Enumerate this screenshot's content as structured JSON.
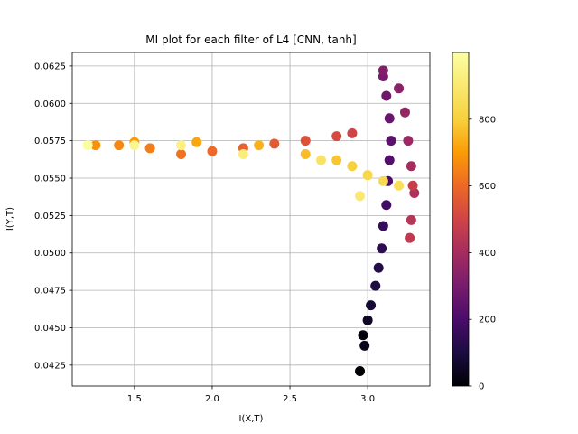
{
  "chart_data": {
    "type": "scatter",
    "title": "MI plot for each filter of L4 [CNN, tanh]",
    "xlabel": "I(X,T)",
    "ylabel": "I(Y,T)",
    "xlim": [
      1.1,
      3.4
    ],
    "ylim": [
      0.0411,
      0.0634
    ],
    "x_ticks": [
      1.5,
      2.0,
      2.5,
      3.0
    ],
    "x_tick_labels": [
      "1.5",
      "2.0",
      "2.5",
      "3.0"
    ],
    "y_ticks": [
      0.0425,
      0.045,
      0.0475,
      0.05,
      0.0525,
      0.055,
      0.0575,
      0.06,
      0.0625
    ],
    "y_tick_labels": [
      "0.0425",
      "0.0450",
      "0.0475",
      "0.0500",
      "0.0525",
      "0.0550",
      "0.0575",
      "0.0600",
      "0.0625"
    ],
    "grid": true,
    "colormap": "inferno",
    "colorbar": {
      "range": [
        0,
        1000
      ],
      "ticks": [
        0,
        200,
        400,
        600,
        800
      ],
      "tick_labels": [
        "0",
        "200",
        "400",
        "600",
        "800"
      ]
    },
    "series": [
      {
        "points": [
          [
            2.95,
            0.0421,
            0
          ],
          [
            2.97,
            0.0445,
            20
          ],
          [
            2.98,
            0.0438,
            40
          ],
          [
            3.0,
            0.0455,
            60
          ],
          [
            3.02,
            0.0465,
            80
          ],
          [
            3.05,
            0.0478,
            100
          ],
          [
            3.07,
            0.049,
            120
          ],
          [
            3.09,
            0.0503,
            140
          ],
          [
            3.1,
            0.0518,
            160
          ],
          [
            3.12,
            0.0532,
            180
          ],
          [
            3.13,
            0.0548,
            200
          ],
          [
            3.14,
            0.0562,
            220
          ],
          [
            3.15,
            0.0575,
            240
          ],
          [
            3.14,
            0.059,
            260
          ],
          [
            3.12,
            0.0605,
            280
          ],
          [
            3.1,
            0.0618,
            300
          ],
          [
            3.1,
            0.0622,
            320
          ],
          [
            3.2,
            0.061,
            340
          ],
          [
            3.24,
            0.0594,
            360
          ],
          [
            3.26,
            0.0575,
            380
          ],
          [
            3.28,
            0.0558,
            400
          ],
          [
            3.3,
            0.054,
            420
          ],
          [
            3.28,
            0.0522,
            440
          ],
          [
            3.27,
            0.051,
            460
          ],
          [
            3.29,
            0.0545,
            480
          ],
          [
            2.9,
            0.058,
            500
          ],
          [
            2.8,
            0.0578,
            520
          ],
          [
            2.6,
            0.0575,
            540
          ],
          [
            2.4,
            0.0573,
            560
          ],
          [
            2.2,
            0.057,
            580
          ],
          [
            2.0,
            0.0568,
            600
          ],
          [
            1.8,
            0.0566,
            620
          ],
          [
            1.6,
            0.057,
            640
          ],
          [
            1.4,
            0.0572,
            660
          ],
          [
            1.25,
            0.0572,
            680
          ],
          [
            1.5,
            0.0574,
            700
          ],
          [
            1.9,
            0.0574,
            720
          ],
          [
            2.3,
            0.0572,
            740
          ],
          [
            2.6,
            0.0566,
            760
          ],
          [
            2.8,
            0.0562,
            780
          ],
          [
            2.9,
            0.0558,
            800
          ],
          [
            3.0,
            0.0552,
            820
          ],
          [
            3.1,
            0.0548,
            840
          ],
          [
            3.2,
            0.0545,
            860
          ],
          [
            2.7,
            0.0562,
            880
          ],
          [
            2.95,
            0.0538,
            900
          ],
          [
            2.2,
            0.0566,
            920
          ],
          [
            1.8,
            0.0572,
            940
          ],
          [
            1.5,
            0.0572,
            960
          ],
          [
            1.2,
            0.0572,
            990
          ]
        ]
      }
    ]
  }
}
